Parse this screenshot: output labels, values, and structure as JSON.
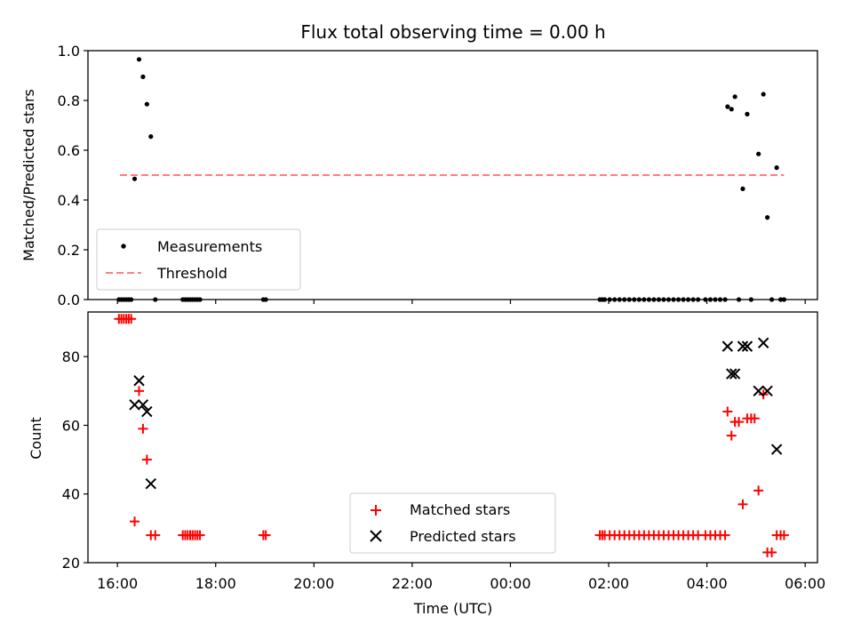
{
  "chart_data": [
    {
      "type": "scatter",
      "title": "Flux total observing time = 0.00 h",
      "xlabel": "",
      "ylabel": "Matched/Predicted stars",
      "ylim": [
        0,
        1.0
      ],
      "yticks": [
        "0.0",
        "0.2",
        "0.4",
        "0.6",
        "0.8",
        "1.0"
      ],
      "legend_position": "lower-left",
      "series": [
        {
          "name": "Measurements",
          "marker": "dot",
          "color": "#000000",
          "points": [
            [
              -7.97,
              0
            ],
            [
              -7.92,
              0
            ],
            [
              -7.87,
              0
            ],
            [
              -7.82,
              0
            ],
            [
              -7.77,
              0
            ],
            [
              -7.72,
              0
            ],
            [
              -7.65,
              0.485
            ],
            [
              -7.56,
              0.965
            ],
            [
              -7.48,
              0.895
            ],
            [
              -7.4,
              0.785
            ],
            [
              -7.32,
              0.655
            ],
            [
              -7.23,
              0
            ],
            [
              -6.67,
              0
            ],
            [
              -6.62,
              0
            ],
            [
              -6.57,
              0
            ],
            [
              -6.52,
              0
            ],
            [
              -6.47,
              0
            ],
            [
              -6.42,
              0
            ],
            [
              -6.37,
              0
            ],
            [
              -6.32,
              0
            ],
            [
              -5.03,
              0
            ],
            [
              -4.98,
              0
            ],
            [
              1.82,
              0
            ],
            [
              1.87,
              0
            ],
            [
              1.92,
              0
            ],
            [
              2.02,
              0
            ],
            [
              2.12,
              0
            ],
            [
              2.22,
              0
            ],
            [
              2.32,
              0
            ],
            [
              2.42,
              0
            ],
            [
              2.52,
              0
            ],
            [
              2.62,
              0
            ],
            [
              2.72,
              0
            ],
            [
              2.82,
              0
            ],
            [
              2.92,
              0
            ],
            [
              3.02,
              0
            ],
            [
              3.12,
              0
            ],
            [
              3.22,
              0
            ],
            [
              3.32,
              0
            ],
            [
              3.42,
              0
            ],
            [
              3.52,
              0
            ],
            [
              3.62,
              0
            ],
            [
              3.72,
              0
            ],
            [
              3.82,
              0
            ],
            [
              3.97,
              0
            ],
            [
              4.07,
              0
            ],
            [
              4.17,
              0
            ],
            [
              4.27,
              0
            ],
            [
              4.37,
              0
            ],
            [
              4.42,
              0.775
            ],
            [
              4.5,
              0.765
            ],
            [
              4.57,
              0.815
            ],
            [
              4.65,
              0
            ],
            [
              4.73,
              0.445
            ],
            [
              4.82,
              0.745
            ],
            [
              4.9,
              0
            ],
            [
              5.05,
              0.585
            ],
            [
              5.15,
              0.825
            ],
            [
              5.23,
              0.33
            ],
            [
              5.32,
              0
            ],
            [
              5.42,
              0.53
            ],
            [
              5.5,
              0
            ],
            [
              5.57,
              0
            ]
          ]
        },
        {
          "name": "Threshold",
          "marker": "dashed-line",
          "color": "#ff7f7f",
          "x": [
            -7.95,
            5.57
          ],
          "y": [
            0.5,
            0.5
          ]
        }
      ]
    },
    {
      "type": "scatter",
      "title": "",
      "xlabel": "Time (UTC)",
      "ylabel": "Count",
      "ylim": [
        20,
        93
      ],
      "yticks": [
        "20",
        "40",
        "60",
        "80"
      ],
      "xticks": [
        "16:00",
        "18:00",
        "20:00",
        "22:00",
        "00:00",
        "02:00",
        "04:00",
        "06:00"
      ],
      "x_tick_values": [
        -8,
        -6,
        -4,
        -2,
        0,
        2,
        4,
        6
      ],
      "xlim": [
        -8.6,
        6.25
      ],
      "legend_position": "lower-center",
      "series": [
        {
          "name": "Matched stars",
          "marker": "plus",
          "color": "#ff0000",
          "points": [
            [
              -7.97,
              91
            ],
            [
              -7.92,
              91
            ],
            [
              -7.87,
              91
            ],
            [
              -7.82,
              91
            ],
            [
              -7.77,
              91
            ],
            [
              -7.72,
              91
            ],
            [
              -7.65,
              32
            ],
            [
              -7.56,
              70
            ],
            [
              -7.48,
              59
            ],
            [
              -7.4,
              50
            ],
            [
              -7.32,
              28
            ],
            [
              -7.23,
              28
            ],
            [
              -6.67,
              28
            ],
            [
              -6.62,
              28
            ],
            [
              -6.57,
              28
            ],
            [
              -6.52,
              28
            ],
            [
              -6.47,
              28
            ],
            [
              -6.42,
              28
            ],
            [
              -6.37,
              28
            ],
            [
              -6.32,
              28
            ],
            [
              -5.03,
              28
            ],
            [
              -4.98,
              28
            ],
            [
              1.82,
              28
            ],
            [
              1.87,
              28
            ],
            [
              1.92,
              28
            ],
            [
              2.02,
              28
            ],
            [
              2.12,
              28
            ],
            [
              2.22,
              28
            ],
            [
              2.32,
              28
            ],
            [
              2.42,
              28
            ],
            [
              2.52,
              28
            ],
            [
              2.62,
              28
            ],
            [
              2.72,
              28
            ],
            [
              2.82,
              28
            ],
            [
              2.92,
              28
            ],
            [
              3.02,
              28
            ],
            [
              3.12,
              28
            ],
            [
              3.22,
              28
            ],
            [
              3.32,
              28
            ],
            [
              3.42,
              28
            ],
            [
              3.52,
              28
            ],
            [
              3.62,
              28
            ],
            [
              3.72,
              28
            ],
            [
              3.82,
              28
            ],
            [
              3.97,
              28
            ],
            [
              4.07,
              28
            ],
            [
              4.17,
              28
            ],
            [
              4.27,
              28
            ],
            [
              4.37,
              28
            ],
            [
              4.42,
              64
            ],
            [
              4.5,
              57
            ],
            [
              4.57,
              61
            ],
            [
              4.65,
              61
            ],
            [
              4.73,
              37
            ],
            [
              4.82,
              62
            ],
            [
              4.9,
              62
            ],
            [
              4.97,
              62
            ],
            [
              5.05,
              41
            ],
            [
              5.15,
              69
            ],
            [
              5.23,
              23
            ],
            [
              5.32,
              23
            ],
            [
              5.42,
              28
            ],
            [
              5.5,
              28
            ],
            [
              5.57,
              28
            ]
          ]
        },
        {
          "name": "Predicted stars",
          "marker": "x",
          "color": "#000000",
          "points": [
            [
              -7.65,
              66
            ],
            [
              -7.56,
              73
            ],
            [
              -7.48,
              66
            ],
            [
              -7.4,
              64
            ],
            [
              -7.32,
              43
            ],
            [
              4.42,
              83
            ],
            [
              4.5,
              75
            ],
            [
              4.57,
              75
            ],
            [
              4.73,
              83
            ],
            [
              4.82,
              83
            ],
            [
              5.05,
              70
            ],
            [
              5.15,
              84
            ],
            [
              5.23,
              70
            ],
            [
              5.42,
              53
            ]
          ]
        }
      ]
    }
  ]
}
